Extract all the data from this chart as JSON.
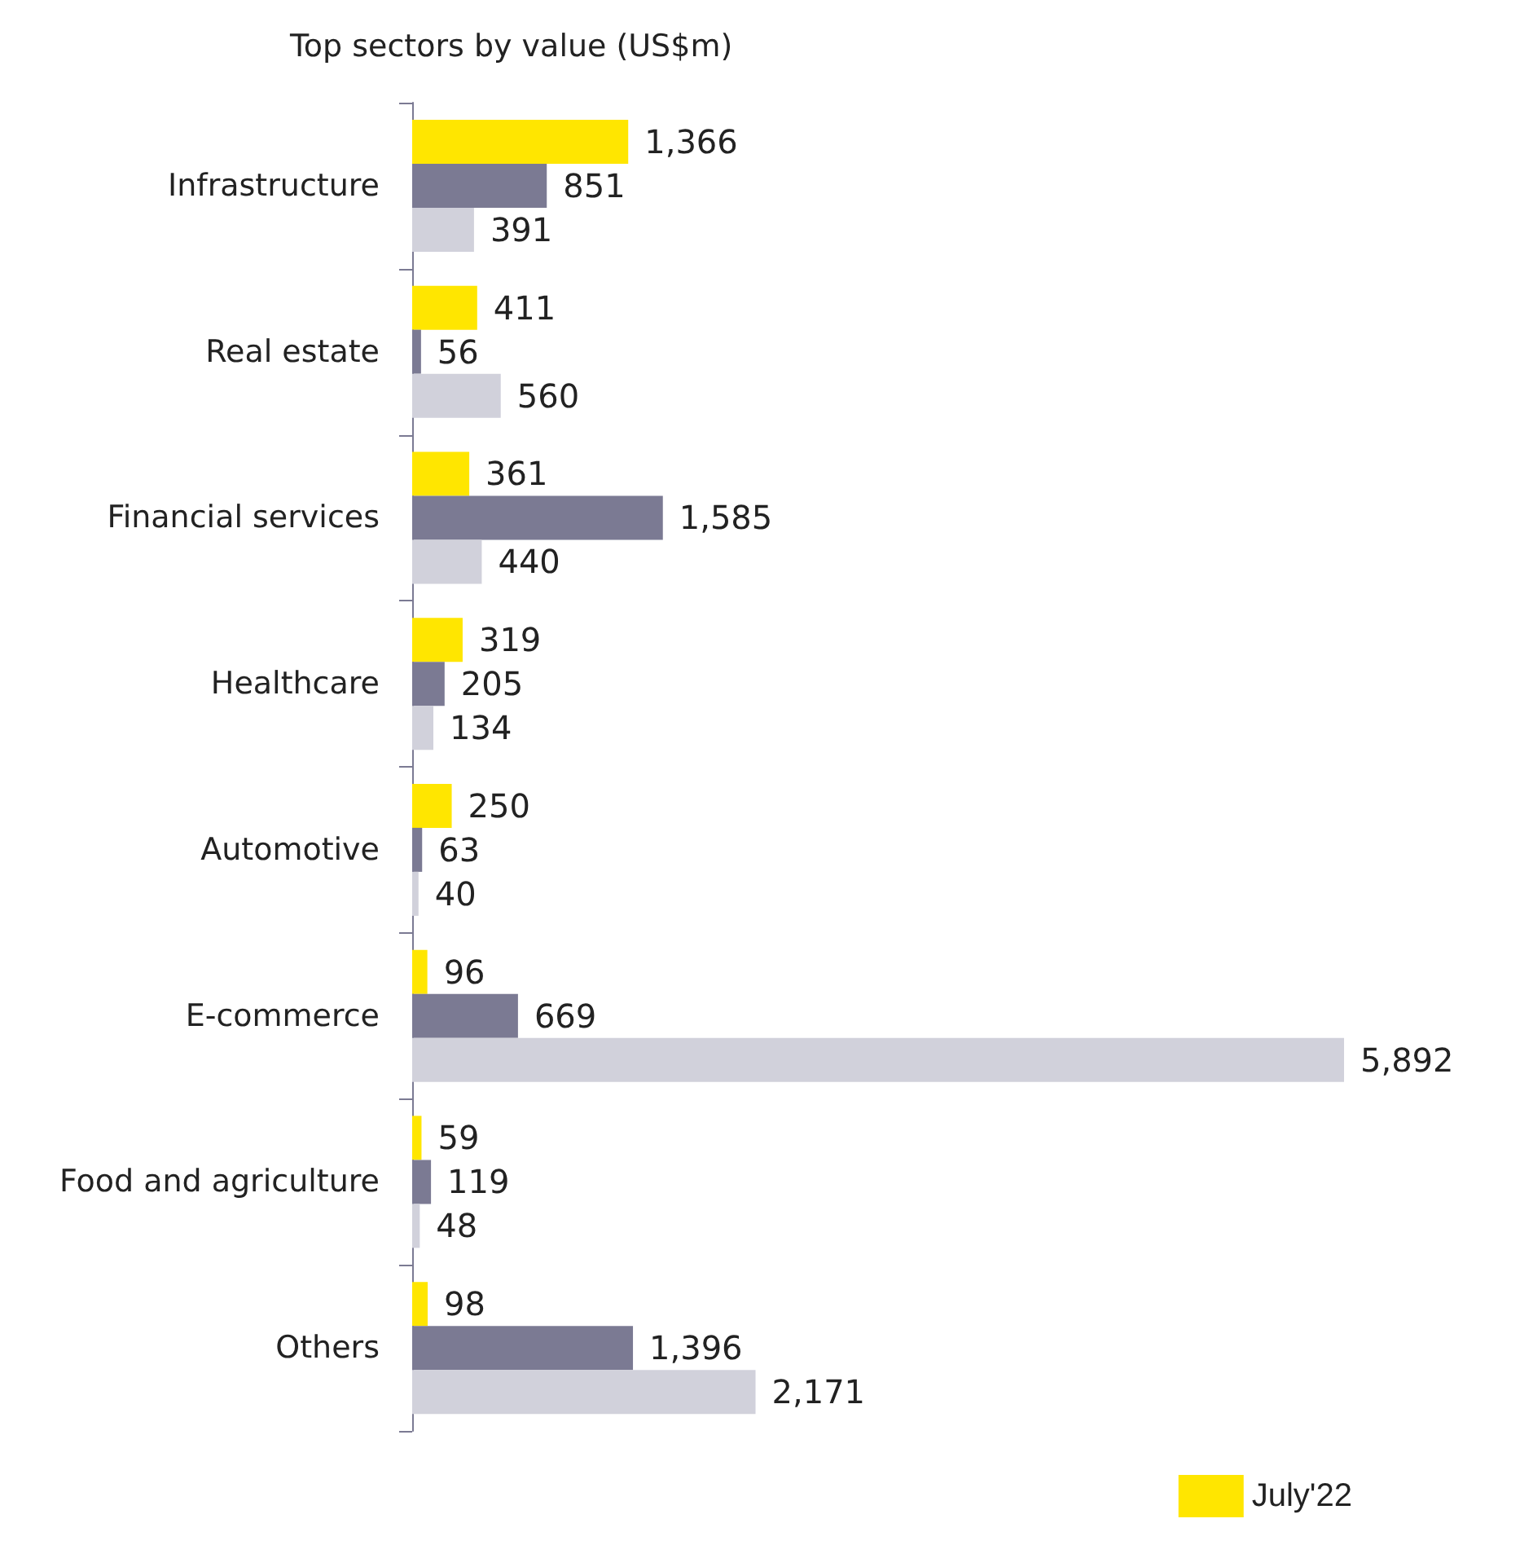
{
  "chart_data": {
    "type": "bar",
    "orientation": "horizontal",
    "title": "Top sectors by value (US$m)",
    "categories": [
      "Infrastructure",
      "Real estate",
      "Financial services",
      "Healthcare",
      "Automotive",
      "E-commerce",
      "Food and agriculture",
      "Others"
    ],
    "series": [
      {
        "name": "July'22",
        "color": "#ffe600",
        "values": [
          1366,
          411,
          361,
          319,
          250,
          96,
          59,
          98
        ],
        "value_labels": [
          "1,366",
          "411",
          "361",
          "319",
          "250",
          "96",
          "59",
          "98"
        ]
      },
      {
        "color": "#7b7a93",
        "values": [
          851,
          56,
          1585,
          205,
          63,
          669,
          119,
          1396
        ],
        "value_labels": [
          "851",
          "56",
          "1,585",
          "205",
          "63",
          "669",
          "119",
          "1,396"
        ]
      },
      {
        "color": "#d1d1db",
        "values": [
          391,
          560,
          440,
          134,
          40,
          5892,
          48,
          2171
        ],
        "value_labels": [
          "391",
          "560",
          "440",
          "134",
          "40",
          "5,892",
          "48",
          "2,171"
        ]
      }
    ],
    "legend": "bottom right"
  }
}
